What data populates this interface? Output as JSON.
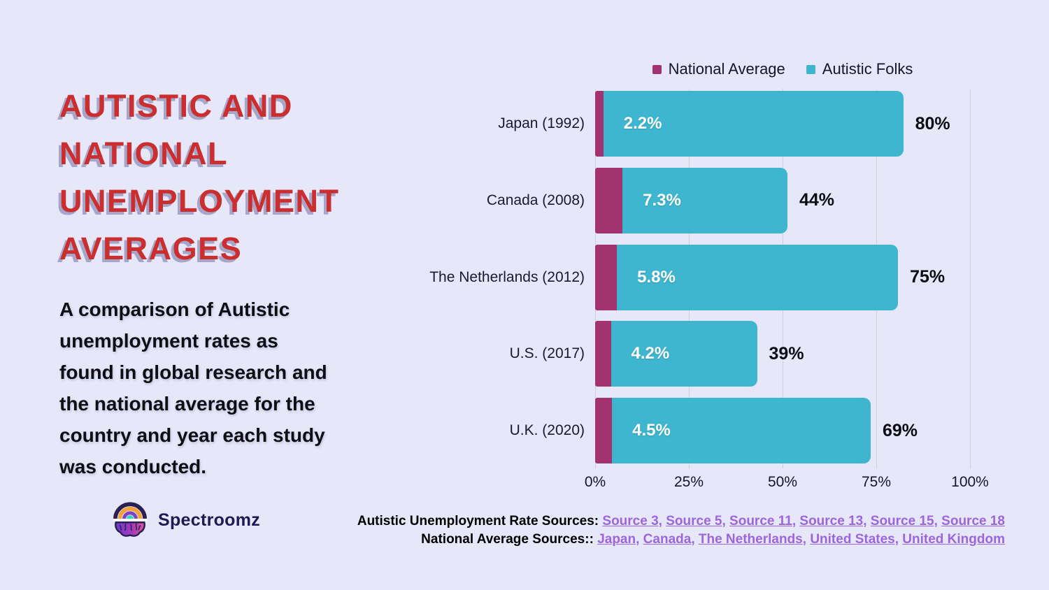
{
  "page": {
    "background": "#e7e7fa"
  },
  "header": {
    "title_lines": [
      "AUTISTIC AND",
      "NATIONAL",
      "UNEMPLOYMENT",
      "AVERAGES"
    ],
    "title_color": "#cb2e2e",
    "description_lines": [
      "A comparison of Autistic",
      "unemployment rates as",
      "found in global research and",
      "the national average for the",
      "country and year each study",
      "was conducted."
    ]
  },
  "brand": {
    "name": "Spectroomz",
    "logo_icon": "rainbow-brain-icon"
  },
  "chart_data": {
    "type": "bar",
    "orientation": "horizontal",
    "stacked": true,
    "categories": [
      "Japan (1992)",
      "Canada (2008)",
      "The Netherlands (2012)",
      "U.S. (2017)",
      "U.K. (2020)"
    ],
    "series": [
      {
        "name": "National Average",
        "color": "#a23270",
        "values": [
          2.2,
          7.3,
          5.8,
          4.2,
          4.5
        ],
        "labels": [
          "2.2%",
          "7.3%",
          "5.8%",
          "4.2%",
          "4.5%"
        ]
      },
      {
        "name": "Autistic Folks",
        "color": "#3fb6d0",
        "values": [
          80,
          44,
          75,
          39,
          69
        ],
        "labels": [
          "80%",
          "44%",
          "75%",
          "39%",
          "69%"
        ]
      }
    ],
    "x_axis": {
      "min": 0,
      "max": 100,
      "ticks": [
        "0%",
        "25%",
        "50%",
        "75%",
        "100%"
      ]
    },
    "grid": true,
    "grid_color": "#cfcfdf",
    "legend_position": "top",
    "legend": [
      {
        "label": "National Average",
        "color": "#a23270"
      },
      {
        "label": "Autistic Folks",
        "color": "#3fb6d0"
      }
    ]
  },
  "sources": {
    "link_color": "#9c66da",
    "line1": {
      "label": "Autistic Unemployment Rate Sources:",
      "links": [
        "Source 3",
        "Source 5",
        "Source 11",
        "Source 13",
        "Source 15",
        "Source 18"
      ]
    },
    "line2": {
      "label": "National Average Sources::",
      "links": [
        "Japan",
        "Canada",
        "The Netherlands",
        "United States",
        "United Kingdom"
      ]
    }
  }
}
